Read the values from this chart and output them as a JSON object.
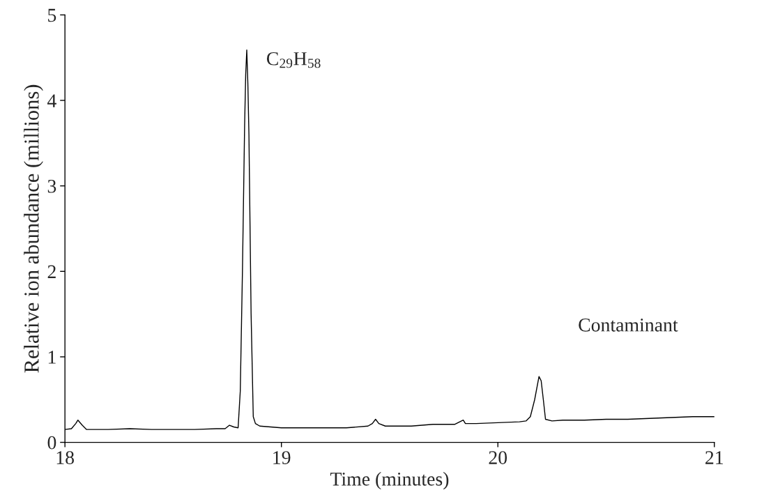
{
  "chart_data": {
    "type": "line",
    "xlabel": "Time (minutes)",
    "ylabel": "Relative ion abundance (millions)",
    "x": [
      18.0,
      18.03,
      18.05,
      18.06,
      18.08,
      18.1,
      18.2,
      18.3,
      18.4,
      18.5,
      18.6,
      18.7,
      18.74,
      18.76,
      18.78,
      18.8,
      18.81,
      18.82,
      18.83,
      18.835,
      18.84,
      18.845,
      18.85,
      18.86,
      18.87,
      18.88,
      18.9,
      19.0,
      19.1,
      19.2,
      19.3,
      19.4,
      19.42,
      19.435,
      19.45,
      19.48,
      19.6,
      19.7,
      19.8,
      19.84,
      19.85,
      19.9,
      20.0,
      20.1,
      20.13,
      20.15,
      20.17,
      20.19,
      20.2,
      20.21,
      20.22,
      20.25,
      20.3,
      20.4,
      20.5,
      20.6,
      20.7,
      20.8,
      20.9,
      21.0
    ],
    "series": [
      {
        "color": "#000000",
        "values": [
          0.15,
          0.16,
          0.22,
          0.26,
          0.2,
          0.15,
          0.15,
          0.16,
          0.15,
          0.15,
          0.15,
          0.16,
          0.16,
          0.2,
          0.18,
          0.17,
          0.6,
          2.0,
          3.7,
          4.3,
          4.59,
          4.2,
          3.6,
          1.5,
          0.3,
          0.22,
          0.19,
          0.17,
          0.17,
          0.17,
          0.17,
          0.19,
          0.22,
          0.27,
          0.22,
          0.19,
          0.19,
          0.21,
          0.21,
          0.26,
          0.22,
          0.22,
          0.23,
          0.24,
          0.25,
          0.3,
          0.5,
          0.77,
          0.72,
          0.5,
          0.27,
          0.25,
          0.26,
          0.26,
          0.27,
          0.27,
          0.28,
          0.29,
          0.3,
          0.3
        ]
      }
    ],
    "xlim": [
      18,
      21
    ],
    "xticks": [
      18,
      19,
      20,
      21
    ],
    "ylim": [
      0,
      5
    ],
    "yticks": [
      0,
      1,
      2,
      3,
      4,
      5
    ],
    "grid": false,
    "marker": "none",
    "line_style": "solid",
    "annotations": [
      {
        "text": "C$_{29}$H$_{58}$",
        "x": 18.84,
        "y": 4.59
      },
      "Contaminant"
    ]
  }
}
